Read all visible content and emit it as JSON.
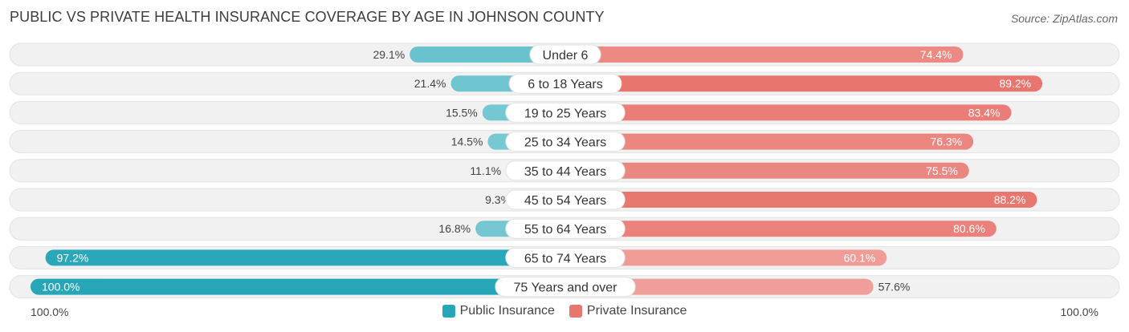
{
  "header": {
    "title": "PUBLIC VS PRIVATE HEALTH INSURANCE COVERAGE BY AGE IN JOHNSON COUNTY",
    "source": "Source: ZipAtlas.com"
  },
  "axis": {
    "left_label": "100.0%",
    "right_label": "100.0%"
  },
  "legend": {
    "public_label": "Public Insurance",
    "private_label": "Private Insurance"
  },
  "colors": {
    "public": "#7ccbd4",
    "public_strong": "#27a6b8",
    "private": "#f0a19d",
    "private_strong": "#e8756e",
    "track": "#f1f1f1"
  },
  "chart_data": {
    "type": "bar",
    "orientation": "horizontal-diverging",
    "title": "PUBLIC VS PRIVATE HEALTH INSURANCE COVERAGE BY AGE IN JOHNSON COUNTY",
    "xlim": [
      0,
      100
    ],
    "categories": [
      "Under 6",
      "6 to 18 Years",
      "19 to 25 Years",
      "25 to 34 Years",
      "35 to 44 Years",
      "45 to 54 Years",
      "55 to 64 Years",
      "65 to 74 Years",
      "75 Years and over"
    ],
    "series": [
      {
        "name": "Public Insurance",
        "values": [
          29.1,
          21.4,
          15.5,
          14.5,
          11.1,
          9.3,
          16.8,
          97.2,
          100.0
        ],
        "labels": [
          "29.1%",
          "21.4%",
          "15.5%",
          "14.5%",
          "11.1%",
          "9.3%",
          "16.8%",
          "97.2%",
          "100.0%"
        ]
      },
      {
        "name": "Private Insurance",
        "values": [
          74.4,
          89.2,
          83.4,
          76.3,
          75.5,
          88.2,
          80.6,
          60.1,
          57.6
        ],
        "labels": [
          "74.4%",
          "89.2%",
          "83.4%",
          "76.3%",
          "75.5%",
          "88.2%",
          "80.6%",
          "60.1%",
          "57.6%"
        ]
      }
    ]
  }
}
